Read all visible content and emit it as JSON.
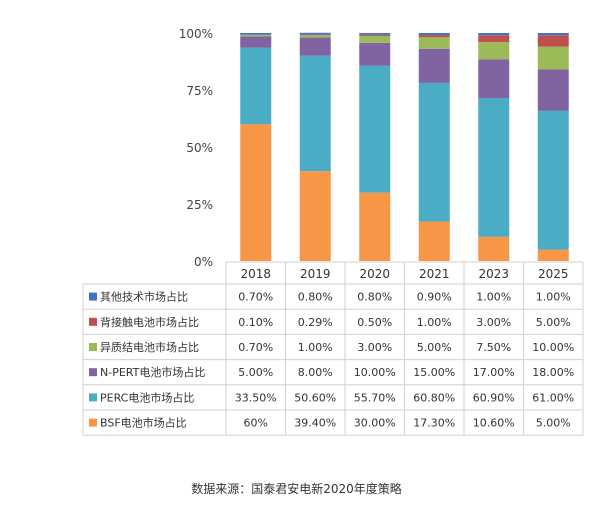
{
  "chart_data": {
    "type": "bar",
    "stacked": true,
    "categories": [
      "2018",
      "2019",
      "2020",
      "2021",
      "2023",
      "2025"
    ],
    "ylim": [
      0,
      100
    ],
    "yticks": [
      "0%",
      "25%",
      "50%",
      "75%",
      "100%"
    ],
    "grid": false,
    "legend": "table-below",
    "series": [
      {
        "name": "其他技术市场占比",
        "color": "#4472c4",
        "values": [
          0.7,
          0.8,
          0.8,
          0.9,
          1.0,
          1.0
        ],
        "labels": [
          "0.70%",
          "0.80%",
          "0.80%",
          "0.90%",
          "1.00%",
          "1.00%"
        ]
      },
      {
        "name": "背接触电池市场占比",
        "color": "#c0504d",
        "values": [
          0.1,
          0.29,
          0.5,
          1.0,
          3.0,
          5.0
        ],
        "labels": [
          "0.10%",
          "0.29%",
          "0.50%",
          "1.00%",
          "3.00%",
          "5.00%"
        ]
      },
      {
        "name": "异质结电池市场占比",
        "color": "#9bbb59",
        "values": [
          0.7,
          1.0,
          3.0,
          5.0,
          7.5,
          10.0
        ],
        "labels": [
          "0.70%",
          "1.00%",
          "3.00%",
          "5.00%",
          "7.50%",
          "10.00%"
        ]
      },
      {
        "name": "N-PERT电池市场占比",
        "color": "#8064a2",
        "values": [
          5.0,
          8.0,
          10.0,
          15.0,
          17.0,
          18.0
        ],
        "labels": [
          "5.00%",
          "8.00%",
          "10.00%",
          "15.00%",
          "17.00%",
          "18.00%"
        ]
      },
      {
        "name": "PERC电池市场占比",
        "color": "#4bacc6",
        "values": [
          33.5,
          50.6,
          55.7,
          60.8,
          60.9,
          61.0
        ],
        "labels": [
          "33.50%",
          "50.60%",
          "55.70%",
          "60.80%",
          "60.90%",
          "61.00%"
        ]
      },
      {
        "name": "BSF电池市场占比",
        "color": "#f79646",
        "values": [
          60,
          39.4,
          30.0,
          17.3,
          10.6,
          5.0
        ],
        "labels": [
          "60%",
          "39.40%",
          "30.00%",
          "17.30%",
          "10.60%",
          "5.00%"
        ]
      }
    ]
  },
  "source": "数据来源：国泰君安电新2020年度策略"
}
